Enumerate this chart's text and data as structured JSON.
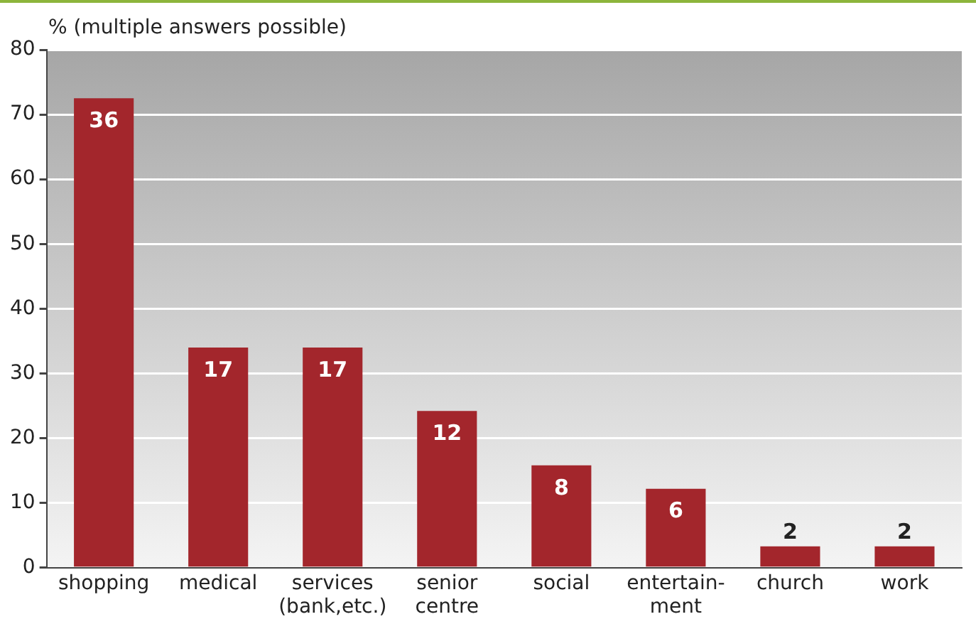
{
  "chart_data": {
    "type": "bar",
    "ylabel": "% (multiple answers possible)",
    "categories": [
      "shopping",
      "medical",
      "services\n(bank,etc.)",
      "senior\ncentre",
      "social",
      "entertain-\nment",
      "church",
      "work"
    ],
    "values": [
      72.5,
      34,
      34,
      24.2,
      15.8,
      12.2,
      3.3,
      3.3
    ],
    "annotations": [
      {
        "text": "36",
        "x": "shopping",
        "y": 72.5
      },
      {
        "text": "17",
        "x": "medical",
        "y": 34
      },
      {
        "text": "17",
        "x": "services\n(bank,etc.)",
        "y": 34
      },
      {
        "text": "12",
        "x": "senior\ncentre",
        "y": 24.2
      },
      {
        "text": "8",
        "x": "social",
        "y": 15.8
      },
      {
        "text": "6",
        "x": "entertain-\nment",
        "y": 12.2
      },
      {
        "text": "2",
        "x": "church",
        "y": 3.3
      },
      {
        "text": "2",
        "x": "work",
        "y": 3.3
      }
    ],
    "color": "#a3262c",
    "ylim": [
      0,
      80
    ],
    "yticks": [
      0,
      10,
      20,
      30,
      40,
      50,
      60,
      70,
      80
    ],
    "grid": "y",
    "legend": false
  }
}
